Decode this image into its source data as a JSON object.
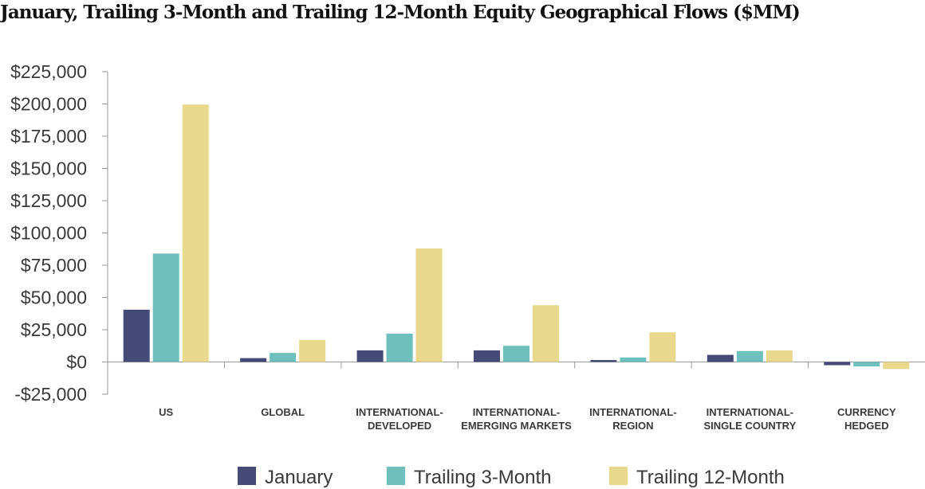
{
  "chart_data": {
    "type": "bar",
    "title": "January, Trailing 3-Month and Trailing 12-Month Equity Geographical Flows ($MM)",
    "categories": [
      [
        "US"
      ],
      [
        "GLOBAL"
      ],
      [
        "INTERNATIONAL-",
        "DEVELOPED"
      ],
      [
        "INTERNATIONAL-",
        "EMERGING MARKETS"
      ],
      [
        "INTERNATIONAL-",
        "REGION"
      ],
      [
        "INTERNATIONAL-",
        "SINGLE COUNTRY"
      ],
      [
        "CURRENCY",
        "HEDGED"
      ]
    ],
    "series": [
      {
        "name": "January",
        "color": "#464a76",
        "values": [
          40500,
          3000,
          9000,
          9000,
          1500,
          5500,
          -2500
        ]
      },
      {
        "name": "Trailing 3-Month",
        "color": "#6dc0bb",
        "values": [
          84000,
          7000,
          22000,
          12500,
          3500,
          8500,
          -3500
        ]
      },
      {
        "name": "Trailing 12-Month",
        "color": "#e8d98c",
        "values": [
          199500,
          17000,
          88000,
          44000,
          23000,
          9000,
          -5500
        ]
      }
    ],
    "yticks": [
      225000,
      200000,
      175000,
      150000,
      125000,
      100000,
      75000,
      50000,
      25000,
      0,
      -25000
    ],
    "ytick_labels": [
      "$225,000",
      "$200,000",
      "$175,000",
      "$150,000",
      "$125,000",
      "$100,000",
      "$75,000",
      "$50,000",
      "$25,000",
      "$0",
      "-$25,000"
    ],
    "ylim": [
      -25000,
      225000
    ],
    "grid": false,
    "legend_position": "bottom-center",
    "xlabel": "",
    "ylabel": ""
  }
}
